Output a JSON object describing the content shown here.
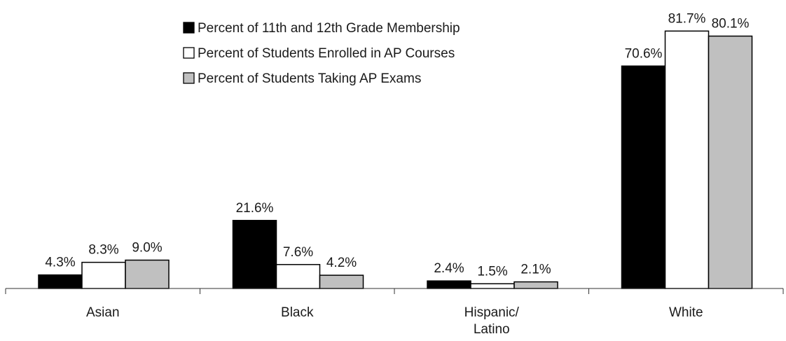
{
  "chart_data": {
    "type": "bar",
    "title": "",
    "xlabel": "",
    "ylabel": "",
    "ylim": [
      0,
      100
    ],
    "grid": false,
    "legend_position": "top-center",
    "categories": [
      "Asian",
      "Black",
      "Hispanic/\nLatino",
      "White"
    ],
    "series": [
      {
        "name": "Percent of 11th and 12th Grade Membership",
        "color": "#000000",
        "values": [
          4.3,
          21.6,
          2.4,
          70.6
        ],
        "labels": [
          "4.3%",
          "21.6%",
          "2.4%",
          "70.6%"
        ]
      },
      {
        "name": "Percent of Students Enrolled in AP Courses",
        "color": "#ffffff",
        "values": [
          8.3,
          7.6,
          1.5,
          81.7
        ],
        "labels": [
          "8.3%",
          "7.6%",
          "1.5%",
          "81.7%"
        ]
      },
      {
        "name": "Percent of Students Taking AP Exams",
        "color": "#c0c0c0",
        "values": [
          9.0,
          4.2,
          2.1,
          80.1
        ],
        "labels": [
          "9.0%",
          "4.2%",
          "2.1%",
          "80.1%"
        ]
      }
    ]
  }
}
